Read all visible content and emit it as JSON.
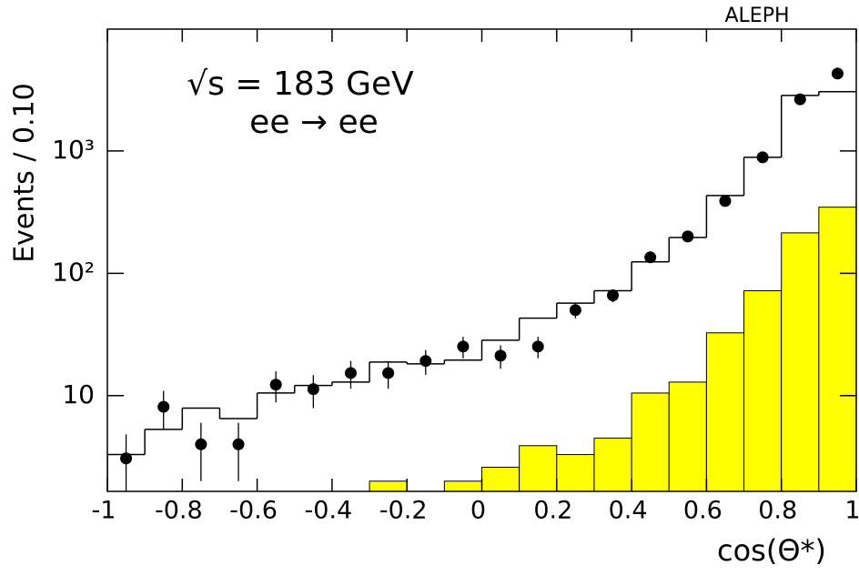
{
  "chart_data": {
    "type": "histogram",
    "experiment": "ALEPH",
    "annotations": [
      "√s = 183 GeV",
      "ee → ee"
    ],
    "xlabel": "cos(Θ*)",
    "ylabel": "Events / 0.10",
    "log_y": true,
    "bins": [
      -1,
      -0.9,
      -0.8,
      -0.7,
      -0.6,
      -0.5,
      -0.4,
      -0.3,
      -0.2,
      -0.1,
      0,
      0.1,
      0.2,
      0.3,
      0.4,
      0.5,
      0.6,
      0.7,
      0.8,
      0.9,
      1
    ],
    "series": [
      {
        "color": "#ffff00",
        "fill": true,
        "values": [
          null,
          null,
          null,
          null,
          null,
          null,
          null,
          2.0,
          null,
          2.0,
          2.6,
          3.9,
          3.3,
          4.5,
          10.5,
          12.9,
          32.6,
          72,
          214,
          347
        ]
      },
      {
        "color": "#000000",
        "fill": false,
        "values": [
          3.3,
          5.3,
          7.9,
          6.5,
          10.5,
          12.1,
          12.9,
          18.8,
          18.2,
          19.5,
          28.4,
          43,
          57,
          72,
          124,
          196,
          432,
          887,
          2840,
          3050
        ]
      }
    ],
    "points": {
      "color": "#000000",
      "x": [
        -0.95,
        -0.85,
        -0.75,
        -0.65,
        -0.55,
        -0.45,
        -0.35,
        -0.25,
        -0.15,
        -0.05,
        0.05,
        0.15,
        0.25,
        0.35,
        0.45,
        0.55,
        0.65,
        0.75,
        0.85,
        0.95
      ],
      "values": [
        3.07,
        8.1,
        4.0,
        4.0,
        12.3,
        11.3,
        15.3,
        15.3,
        19.2,
        25.2,
        21.2,
        25.2,
        50,
        66,
        135,
        200,
        390,
        887,
        2640,
        4290
      ],
      "errors": [
        1.75,
        2.85,
        2.0,
        2.0,
        3.5,
        3.4,
        3.9,
        3.9,
        4.4,
        5.0,
        4.6,
        5.0,
        7.1,
        8.1,
        11.6,
        14.1,
        19.7,
        29.8,
        51.4,
        65.5
      ]
    },
    "xlim": [
      -1,
      1
    ],
    "ylim": [
      1.65,
      9900
    ],
    "xticks": [
      -1,
      -0.8,
      -0.6,
      -0.4,
      -0.2,
      0,
      0.2,
      0.4,
      0.6,
      0.8,
      1
    ],
    "yticks": [
      10,
      {
        "value": 100,
        "label": "10²"
      },
      {
        "value": 1000,
        "label": "10³"
      }
    ]
  }
}
